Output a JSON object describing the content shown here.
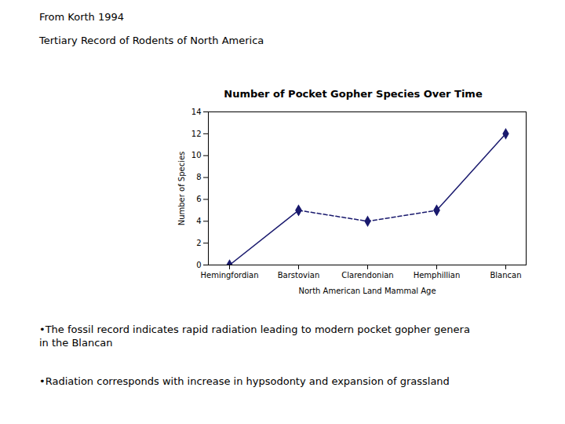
{
  "chart_data": {
    "type": "line",
    "title": "Number of Pocket Gopher Species Over Time",
    "xlabel": "North American Land Mammal Age",
    "ylabel": "Number of Species",
    "categories": [
      "Hemingfordian",
      "Barstovian",
      "Clarendonian",
      "Hemphillian",
      "Blancan"
    ],
    "series": [
      {
        "values": [
          0,
          5,
          null,
          null,
          null
        ],
        "line_style": "solid"
      },
      {
        "values": [
          null,
          5,
          4,
          5,
          null
        ],
        "line_style": "dashed"
      },
      {
        "values": [
          null,
          null,
          null,
          5,
          12
        ],
        "line_style": "solid"
      }
    ],
    "color": "#1a1a6e",
    "marker": "diamond",
    "ylim": [
      0,
      14
    ],
    "yticks": [
      0,
      2,
      4,
      6,
      8,
      10,
      12,
      14
    ],
    "grid": false,
    "annotations": [
      "From Korth 1994",
      "Tertiary Record of Rodents of North America",
      "•The fossil record indicates rapid radiation leading to modern pocket gopher genera\nin the Blancan",
      "•Radiation corresponds with increase in hypsodonty and expansion of grassland"
    ]
  }
}
